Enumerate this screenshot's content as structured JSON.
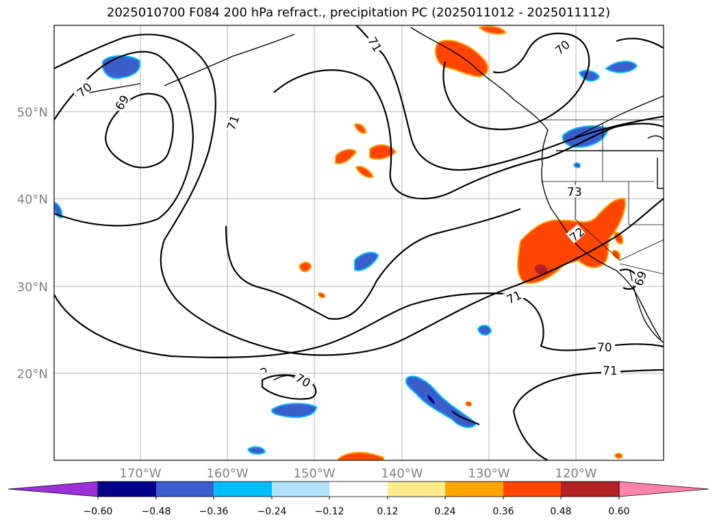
{
  "title": "2025010700 F084 200 hPa refract., precipitation PC (2025011012 - 2025011112)",
  "map": {
    "lat_labels": [
      "50°N",
      "40°N",
      "30°N",
      "20°N"
    ],
    "lon_labels": [
      "170°W",
      "160°W",
      "150°W",
      "140°W",
      "130°W",
      "120°W"
    ],
    "contour_levels": [
      69,
      70,
      71,
      72,
      73
    ],
    "contour_labels": [
      "70",
      "69",
      "71",
      "71",
      "70",
      "73",
      "72",
      "71",
      "69",
      "70",
      "71",
      "70"
    ]
  },
  "colorbar": {
    "colors": [
      "#9b30d9",
      "#00008b",
      "#3a5fcd",
      "#00bfff",
      "#b0e2ff",
      "#ffffff",
      "#ffec8b",
      "#ffa500",
      "#ff4500",
      "#b22222",
      "#ff82ab"
    ],
    "tick_labels": [
      "−0.60",
      "−0.48",
      "−0.36",
      "−0.24",
      "−0.12",
      "0.12",
      "0.24",
      "0.36",
      "0.48",
      "0.60"
    ]
  }
}
